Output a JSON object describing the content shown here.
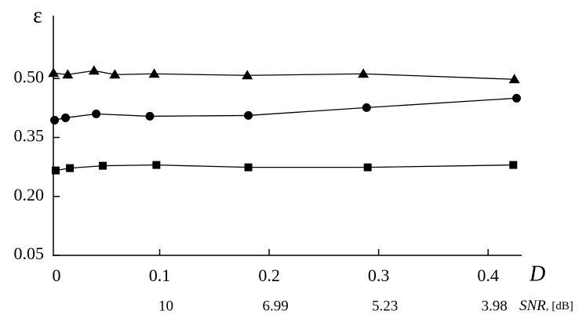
{
  "chart_data": {
    "type": "line",
    "y_label": "ε",
    "x_label": "D",
    "x2_label": "SNR",
    "x2_unit": ", [dB]",
    "xlim": [
      0,
      0.43
    ],
    "xticks": [
      0,
      0.1,
      0.2,
      0.3,
      0.4
    ],
    "ylim": [
      0.05,
      0.66
    ],
    "yticks": [
      0.05,
      {
        "value": 0.2,
        "label": "0.20"
      },
      0.35,
      {
        "value": 0.5,
        "label": "0.50"
      }
    ],
    "x2ticks": [
      {
        "value": 0.1,
        "label": "10"
      },
      {
        "value": 0.2,
        "label": "6.99"
      },
      {
        "value": 0.3,
        "label": "5.23"
      },
      {
        "value": 0.4,
        "label": "3.98"
      }
    ],
    "series": [
      {
        "marker": "triangle",
        "color": "#000",
        "x": [
          0.003,
          0.016,
          0.04,
          0.059,
          0.095,
          0.18,
          0.286,
          0.424
        ],
        "values": [
          0.514,
          0.51,
          0.52,
          0.51,
          0.512,
          0.508,
          0.512,
          0.498
        ]
      },
      {
        "marker": "circle",
        "color": "#000",
        "x": [
          0.004,
          0.014,
          0.042,
          0.091,
          0.181,
          0.289,
          0.426
        ],
        "values": [
          0.394,
          0.4,
          0.41,
          0.404,
          0.406,
          0.426,
          0.45
        ]
      },
      {
        "marker": "square",
        "color": "#000",
        "x": [
          0.005,
          0.018,
          0.048,
          0.097,
          0.181,
          0.29,
          0.423
        ],
        "values": [
          0.266,
          0.272,
          0.278,
          0.28,
          0.274,
          0.274,
          0.28
        ]
      }
    ]
  }
}
